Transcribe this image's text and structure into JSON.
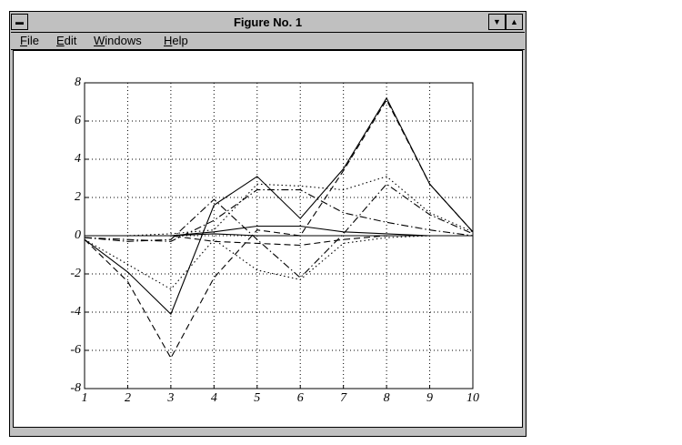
{
  "window": {
    "title": "Figure No. 1",
    "menu": [
      "File",
      "Edit",
      "Windows",
      "Help"
    ]
  },
  "chart_data": {
    "type": "line",
    "x": [
      1,
      2,
      3,
      4,
      5,
      6,
      7,
      8,
      9,
      10
    ],
    "series": [
      {
        "color": "#000000",
        "dash": "solid",
        "values": [
          -0.2,
          -1.9,
          -4.1,
          1.6,
          3.1,
          0.9,
          3.5,
          7.2,
          2.7,
          0.2
        ]
      },
      {
        "color": "#000000",
        "dash": "dashed",
        "values": [
          -0.2,
          -2.4,
          -6.4,
          -2.2,
          0.3,
          0,
          3.4,
          7.1,
          2.7,
          0.2
        ]
      },
      {
        "color": "#000000",
        "dash": "dotted",
        "values": [
          -0.2,
          -1.5,
          -2.8,
          -0.2,
          -1.8,
          -2.3,
          -0.4,
          -0.1,
          0,
          0
        ]
      },
      {
        "color": "#000000",
        "dash": "dotted",
        "values": [
          0,
          0,
          0.1,
          0.3,
          2.7,
          2.6,
          2.4,
          3.1,
          1.2,
          0.2
        ]
      },
      {
        "color": "#000000",
        "dash": "dashdot",
        "values": [
          -0.1,
          -0.2,
          -0.3,
          0.8,
          2.4,
          2.4,
          1.2,
          0.7,
          0.3,
          0
        ]
      },
      {
        "color": "#000000",
        "dash": "dashdot",
        "values": [
          -0.1,
          -0.3,
          -0.2,
          1.9,
          -0.2,
          -2.2,
          0.1,
          2.7,
          1.1,
          0.1
        ]
      },
      {
        "color": "#000000",
        "dash": "solid",
        "values": [
          0,
          0,
          0,
          0.2,
          0.5,
          0.5,
          0.2,
          0.1,
          0,
          0
        ]
      },
      {
        "color": "#000000",
        "dash": "dashed",
        "values": [
          0,
          0,
          0,
          -0.3,
          -0.4,
          -0.5,
          -0.2,
          0,
          0,
          0
        ]
      },
      {
        "color": "#000000",
        "dash": "solid",
        "values": [
          0,
          0,
          0,
          0.1,
          0,
          0,
          0,
          0,
          0,
          0
        ]
      }
    ],
    "xlim": [
      1,
      10
    ],
    "xticks": [
      1,
      2,
      3,
      4,
      5,
      6,
      7,
      8,
      9,
      10
    ],
    "ylim": [
      -8,
      8
    ],
    "yticks": [
      -8,
      -6,
      -4,
      -2,
      0,
      2,
      4,
      6,
      8
    ],
    "grid": true
  }
}
